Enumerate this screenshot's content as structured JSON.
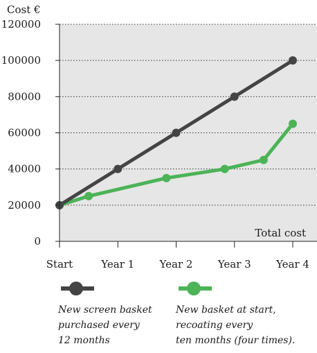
{
  "chart_data": {
    "type": "line",
    "ylabel": "Cost €",
    "annotation": "Total cost",
    "categories": [
      "Start",
      "Year 1",
      "Year 2",
      "Year 3",
      "Year 4"
    ],
    "ylim": [
      0,
      120000
    ],
    "yticks": [
      "0",
      "20000",
      "40000",
      "60000",
      "80000",
      "100000",
      "120000"
    ],
    "grid": true,
    "grid_style": "dotted",
    "legend_position": "bottom",
    "series": [
      {
        "name": "New screen basket purchased every 12 months",
        "color": "#444444",
        "x": [
          0,
          1,
          2,
          3,
          4
        ],
        "values": [
          20000,
          40000,
          60000,
          80000,
          100000
        ]
      },
      {
        "name": "New basket at start, recoating every ten months (four times).",
        "color": "#4cb357",
        "x": [
          0,
          0.5,
          1.833,
          2.833,
          3.5,
          4
        ],
        "values": [
          20000,
          25000,
          35000,
          40000,
          45000,
          65000
        ]
      }
    ]
  },
  "legend": [
    {
      "text": "New screen basket\npurchased every\n12 months",
      "color": "#444444"
    },
    {
      "text": "New basket at start,\nrecoating every\nten months (four times).",
      "color": "#4cb357"
    }
  ]
}
